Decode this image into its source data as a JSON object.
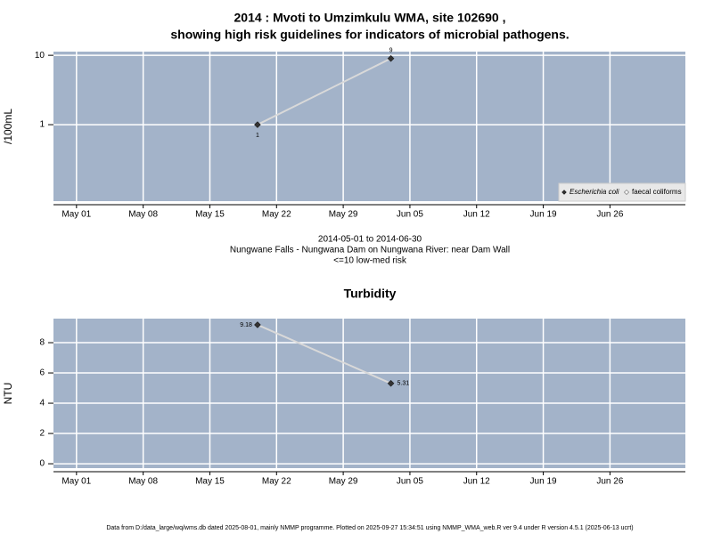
{
  "chart_data": [
    {
      "type": "line",
      "title": [
        "2014 : Mvoti to Umzimkulu WMA, site 102690 ,",
        "showing high risk guidelines for indicators of microbial pathogens."
      ],
      "y_label": "/100mL",
      "log_y": true,
      "xlim": [
        "2014-04-28T14:00",
        "2014-07-03T22:00"
      ],
      "xticks": [
        {
          "value": "2014-05-01",
          "label": "May 01"
        },
        {
          "value": "2014-05-08",
          "label": "May 08"
        },
        {
          "value": "2014-05-15",
          "label": "May 15"
        },
        {
          "value": "2014-05-22",
          "label": "May 22"
        },
        {
          "value": "2014-05-29",
          "label": "May 29"
        },
        {
          "value": "2014-06-05",
          "label": "Jun 05"
        },
        {
          "value": "2014-06-12",
          "label": "Jun 12"
        },
        {
          "value": "2014-06-19",
          "label": "Jun 19"
        },
        {
          "value": "2014-06-26",
          "label": "Jun 26"
        }
      ],
      "ylim": [
        0.079,
        11.3
      ],
      "yticks": [
        1,
        10
      ],
      "grid": true,
      "x": [
        "2014-05-20",
        "2014-06-03"
      ],
      "series": [
        {
          "name": "Escherichia coli",
          "color": "#333333",
          "values": [
            1,
            9
          ]
        },
        {
          "name": "faecal coliforms",
          "color": "#ffffff",
          "values": [
            null,
            null
          ]
        }
      ],
      "legend": "bottom-right",
      "notes": [
        "2014-05-01 to 2014-06-30",
        "Nungwane Falls - Nungwana Dam on Nungwana River: near Dam Wall",
        "<=10 low-med risk"
      ]
    },
    {
      "type": "line",
      "title": [
        "Turbidity"
      ],
      "y_label": "NTU",
      "log_y": false,
      "xlim": [
        "2014-04-28T14:00",
        "2014-07-03T22:00"
      ],
      "xticks": [
        {
          "value": "2014-05-01",
          "label": "May 01"
        },
        {
          "value": "2014-05-08",
          "label": "May 08"
        },
        {
          "value": "2014-05-15",
          "label": "May 15"
        },
        {
          "value": "2014-05-22",
          "label": "May 22"
        },
        {
          "value": "2014-05-29",
          "label": "May 29"
        },
        {
          "value": "2014-06-05",
          "label": "Jun 05"
        },
        {
          "value": "2014-06-12",
          "label": "Jun 12"
        },
        {
          "value": "2014-06-19",
          "label": "Jun 19"
        },
        {
          "value": "2014-06-26",
          "label": "Jun 26"
        }
      ],
      "ylim": [
        -0.29,
        9.59
      ],
      "yticks": [
        0,
        2,
        4,
        6,
        8
      ],
      "grid": true,
      "x": [
        "2014-05-20",
        "2014-06-03"
      ],
      "series": [
        {
          "name": "Turbidity",
          "color": "#333333",
          "values": [
            9.18,
            5.31
          ]
        }
      ]
    }
  ],
  "footer": "Data from D:/data_large/wq/wms.db dated 2025-08-01, mainly NMMP programme. Plotted on 2025-09-27 15:34:51 using NMMP_WMA_web.R ver 9.4 under R version 4.5.1 (2025-06-13 ucrt)"
}
